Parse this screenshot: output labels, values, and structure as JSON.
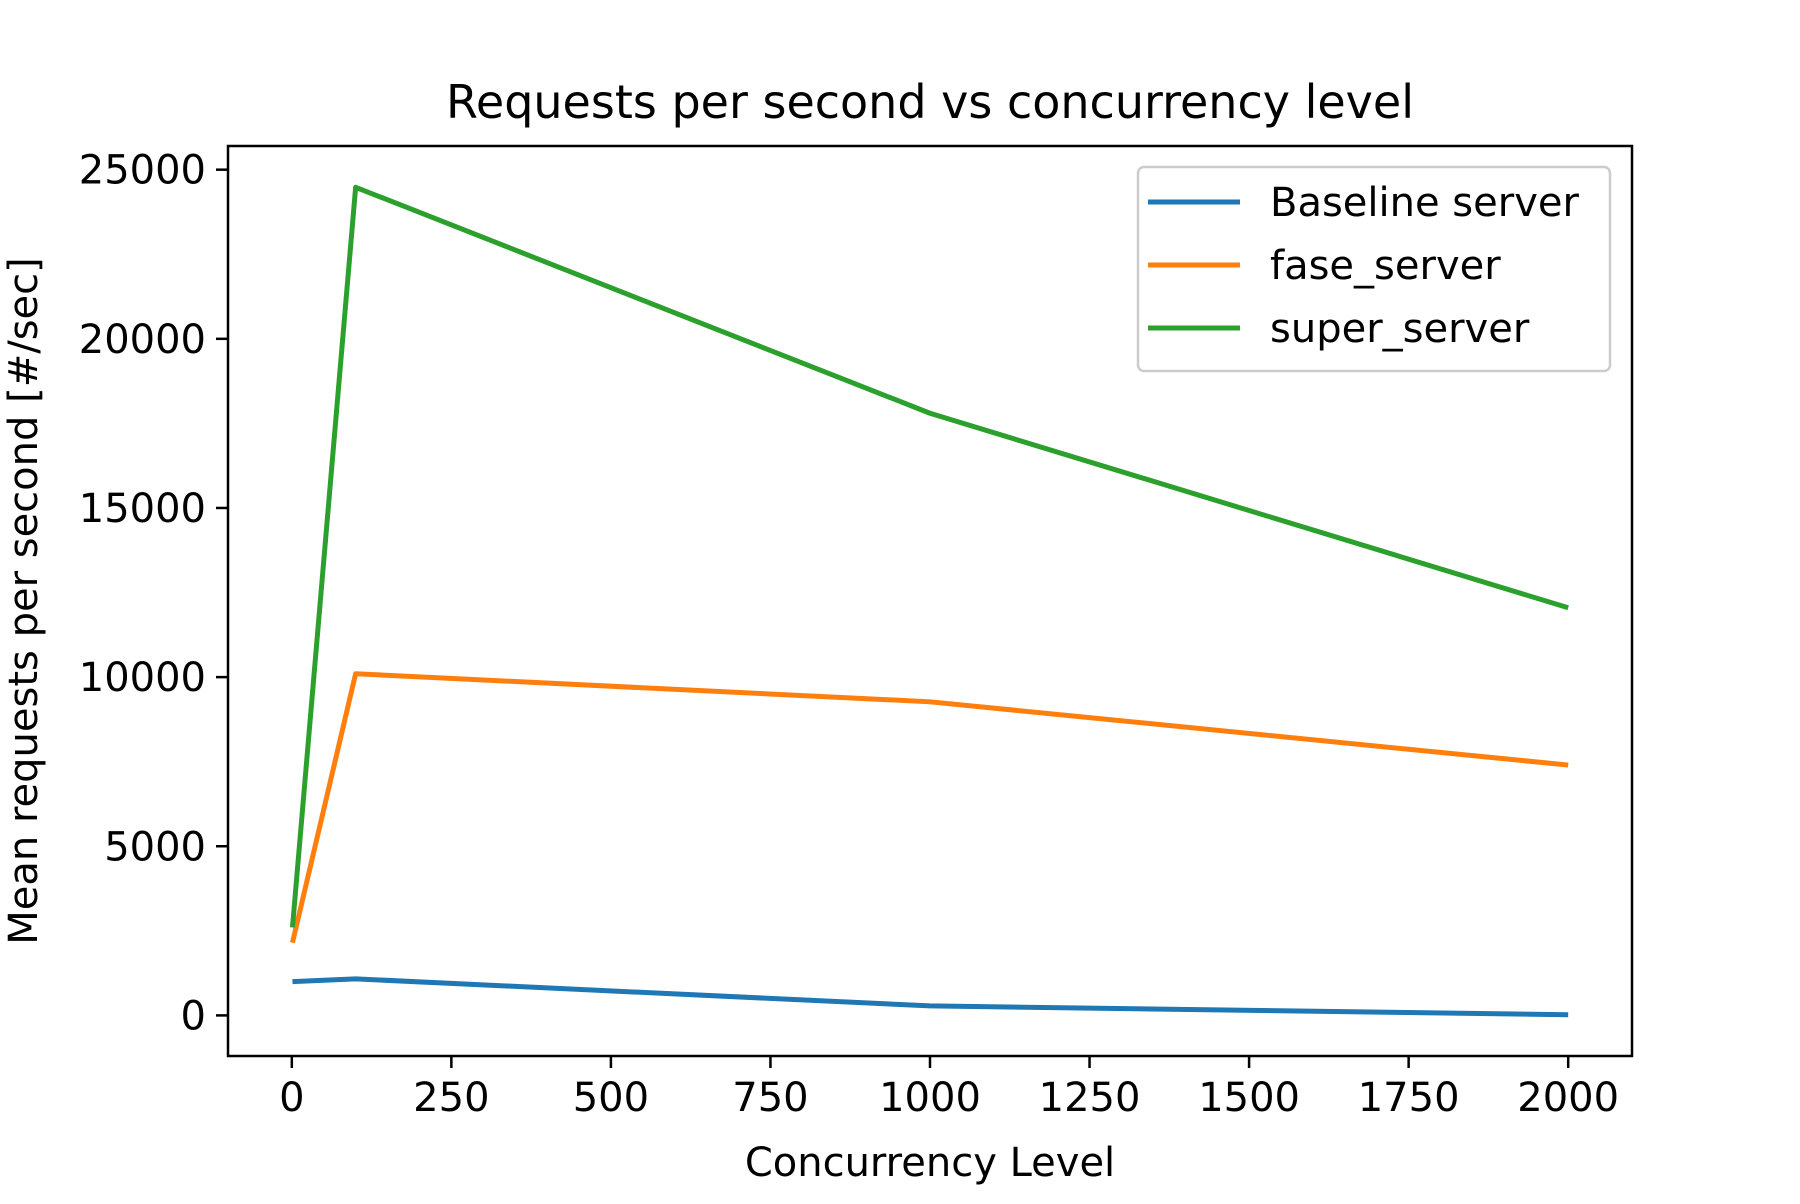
{
  "chart_data": {
    "type": "line",
    "title": "Requests per second vs concurrency level",
    "xlabel": "Concurrency Level",
    "ylabel": "Mean requests per second [#/sec]",
    "x": [
      1,
      100,
      1000,
      2000
    ],
    "xlim": [
      -100,
      2100
    ],
    "ylim": [
      -1200,
      25700
    ],
    "xticks": [
      0,
      250,
      500,
      750,
      1000,
      1250,
      1500,
      1750,
      2000
    ],
    "yticks": [
      0,
      5000,
      10000,
      15000,
      20000,
      25000
    ],
    "grid": false,
    "legend_position": "top-right",
    "series": [
      {
        "name": "Baseline server",
        "color": "#1f77b4",
        "values": [
          1000,
          1080,
          280,
          20
        ]
      },
      {
        "name": "fase_server",
        "color": "#ff7f0e",
        "values": [
          2150,
          10100,
          9270,
          7400
        ]
      },
      {
        "name": "super_server",
        "color": "#2ca02c",
        "values": [
          2600,
          24480,
          17800,
          12050
        ]
      }
    ]
  }
}
